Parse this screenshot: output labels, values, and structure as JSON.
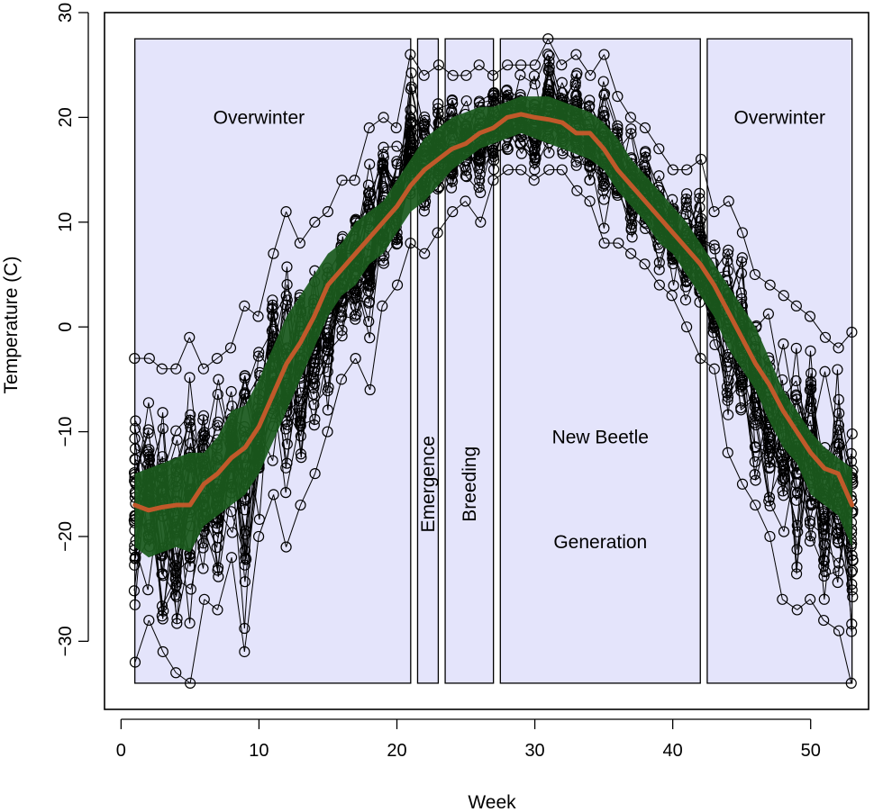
{
  "chart_data": {
    "type": "scatter",
    "title": "",
    "xlabel": "Week",
    "ylabel": "Temperature (C)",
    "xlim": [
      -1.2,
      54.2
    ],
    "ylim": [
      -36.5,
      30
    ],
    "xticks": [
      0,
      10,
      20,
      30,
      40,
      50
    ],
    "yticks": [
      -30,
      -20,
      -10,
      0,
      10,
      20,
      30
    ],
    "tick_labels": {
      "x": [
        "0",
        "10",
        "20",
        "30",
        "40",
        "50"
      ],
      "y": [
        "−30",
        "−20",
        "−10",
        "0",
        "10",
        "20",
        "30"
      ]
    },
    "regions": [
      {
        "name": "Overwinter",
        "x": [
          1,
          21
        ],
        "y": [
          -34,
          27.5
        ],
        "label": "Overwinter",
        "label_orientation": "horizontal",
        "label_at": [
          10,
          20
        ]
      },
      {
        "name": "Emergence",
        "x": [
          21.5,
          23
        ],
        "y": [
          -34,
          27.5
        ],
        "label": "Emergence",
        "label_orientation": "vertical",
        "label_at": [
          22.25,
          -15
        ]
      },
      {
        "name": "Breeding",
        "x": [
          23.5,
          27
        ],
        "y": [
          -34,
          27.5
        ],
        "label": "Breeding",
        "label_orientation": "vertical",
        "label_at": [
          25.25,
          -15
        ]
      },
      {
        "name": "New Beetle Generation",
        "x": [
          27.5,
          42
        ],
        "y": [
          -34,
          27.5
        ],
        "label_lines": [
          "New Beetle",
          "Generation"
        ],
        "label_orientation": "horizontal",
        "label_at": [
          34.75,
          -10.5
        ]
      },
      {
        "name": "Overwinter",
        "x": [
          42.5,
          53
        ],
        "y": [
          -34,
          27.5
        ],
        "label": "Overwinter",
        "label_orientation": "horizontal",
        "label_at": [
          47.75,
          20
        ]
      }
    ],
    "series": [
      {
        "name": "weekly temperature observations",
        "style": "points connected by lines",
        "weeks": [
          1,
          2,
          3,
          4,
          5,
          6,
          7,
          8,
          9,
          10,
          11,
          12,
          13,
          14,
          15,
          16,
          17,
          18,
          19,
          20,
          21,
          22,
          23,
          24,
          25,
          26,
          27,
          28,
          29,
          30,
          31,
          32,
          33,
          34,
          35,
          36,
          37,
          38,
          39,
          40,
          41,
          42,
          43,
          44,
          45,
          46,
          47,
          48,
          49,
          50,
          51,
          52,
          53
        ],
        "ymin": [
          -32,
          -28,
          -31,
          -33,
          -34,
          -26,
          -27,
          -22,
          -31,
          -20,
          -16,
          -21,
          -17,
          -14,
          -10,
          -5,
          -3,
          -6,
          2,
          4,
          8,
          7,
          9,
          11,
          12,
          10,
          14,
          15,
          15,
          14,
          15,
          15,
          13,
          12,
          8,
          8,
          7,
          6,
          4,
          3,
          0,
          -3,
          -4,
          -12,
          -15,
          -17,
          -20,
          -26,
          -27,
          -26,
          -28,
          -29,
          -34
        ],
        "ymax": [
          -3,
          -3,
          -4,
          -4,
          -1,
          -4,
          -3,
          -2,
          2,
          1,
          7,
          11,
          8,
          10,
          11,
          14,
          14,
          19,
          20,
          19,
          26,
          24,
          25,
          24,
          24,
          25,
          24,
          25,
          25,
          25,
          27.5,
          25,
          26,
          24,
          26,
          22,
          20,
          19,
          17,
          15,
          15,
          16,
          11,
          12,
          9,
          5,
          4,
          3,
          2,
          1,
          -1,
          -2,
          -0.5
        ]
      },
      {
        "name": "confidence band",
        "style": "band",
        "weeks": [
          1,
          2,
          3,
          4,
          5,
          6,
          7,
          8,
          9,
          10,
          11,
          12,
          13,
          14,
          15,
          16,
          17,
          18,
          19,
          20,
          21,
          22,
          23,
          24,
          25,
          26,
          27,
          28,
          29,
          30,
          31,
          32,
          33,
          34,
          35,
          36,
          37,
          38,
          39,
          40,
          41,
          42,
          43,
          44,
          45,
          46,
          47,
          48,
          49,
          50,
          51,
          52,
          53
        ],
        "lower": [
          -21,
          -22,
          -21.5,
          -21,
          -21.5,
          -19,
          -18,
          -17,
          -16,
          -14,
          -11,
          -8,
          -5,
          -2,
          1,
          3,
          4,
          6,
          7,
          9,
          11,
          12,
          13.5,
          15,
          16,
          17,
          17.5,
          18,
          18.5,
          18,
          17.5,
          17,
          16.5,
          16,
          15,
          13,
          11.5,
          10,
          8,
          7,
          5,
          3,
          1,
          -2,
          -4,
          -6,
          -9,
          -11.5,
          -13,
          -16,
          -17,
          -18,
          -21
        ],
        "upper": [
          -14,
          -13.5,
          -13,
          -12.5,
          -12,
          -12,
          -10.5,
          -8,
          -7.5,
          -5,
          -2,
          1,
          3,
          5,
          7,
          8,
          10,
          11,
          12,
          14,
          16,
          18,
          19,
          20,
          20.5,
          21,
          21,
          21.5,
          22,
          22,
          22,
          21.5,
          21,
          20.5,
          19.5,
          18,
          16,
          14.5,
          13,
          11.5,
          10,
          8,
          6,
          4,
          2,
          0,
          -3,
          -6,
          -8,
          -10,
          -11.5,
          -12.5,
          -13.5
        ]
      },
      {
        "name": "mean",
        "style": "line",
        "color": "#c0592a",
        "weeks": [
          1,
          2,
          3,
          4,
          5,
          6,
          7,
          8,
          9,
          10,
          11,
          12,
          13,
          14,
          15,
          16,
          17,
          18,
          19,
          20,
          21,
          22,
          23,
          24,
          25,
          26,
          27,
          28,
          29,
          30,
          31,
          32,
          33,
          34,
          35,
          36,
          37,
          38,
          39,
          40,
          41,
          42,
          43,
          44,
          45,
          46,
          47,
          48,
          49,
          50,
          51,
          52,
          53
        ],
        "values": [
          -17,
          -17.5,
          -17.2,
          -17,
          -17,
          -15,
          -14,
          -12.5,
          -11.5,
          -9.5,
          -6.5,
          -3.5,
          -1.5,
          1,
          4,
          5.5,
          7,
          8.5,
          10,
          11.5,
          13.5,
          15,
          16,
          17,
          17.5,
          18.5,
          19,
          20,
          20.3,
          20,
          19.8,
          19.5,
          18.5,
          18.5,
          17,
          15,
          13.5,
          12,
          10.5,
          9,
          7.5,
          6,
          4,
          1.5,
          -1,
          -3.5,
          -5.5,
          -8,
          -10,
          -12,
          -13.5,
          -14,
          -17
        ]
      }
    ],
    "colors": {
      "region_fill": "#e4e4fb",
      "band_fill": "#1b5a1d",
      "points": "#000000",
      "mean_line": "#c0592a",
      "background": "#ffffff"
    }
  }
}
